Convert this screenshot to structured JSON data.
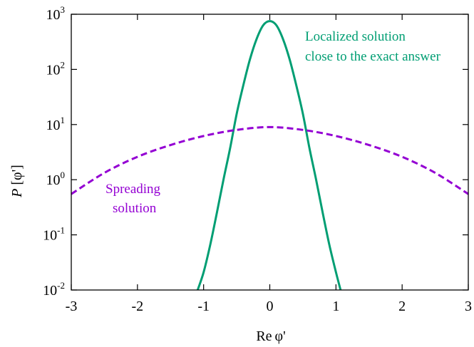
{
  "chart_data": {
    "type": "line",
    "xlabel_parts": [
      "Re",
      "φ'"
    ],
    "ylabel_parts": [
      "P",
      "[φ']"
    ],
    "xlim": [
      -3,
      3
    ],
    "ylim": [
      0.01,
      1000
    ],
    "log_y": true,
    "grid": false,
    "x_ticks": [
      {
        "value": -3,
        "label": "-3"
      },
      {
        "value": -2,
        "label": "-2"
      },
      {
        "value": -1,
        "label": "-1"
      },
      {
        "value": 0,
        "label": "0"
      },
      {
        "value": 1,
        "label": "1"
      },
      {
        "value": 2,
        "label": "2"
      },
      {
        "value": 3,
        "label": "3"
      }
    ],
    "y_ticks": [
      {
        "value": 0.01,
        "base": "10",
        "exp": "-2"
      },
      {
        "value": 0.1,
        "base": "10",
        "exp": "-1"
      },
      {
        "value": 1,
        "base": "10",
        "exp": "0"
      },
      {
        "value": 10,
        "base": "10",
        "exp": "1"
      },
      {
        "value": 100,
        "base": "10",
        "exp": "2"
      },
      {
        "value": 1000,
        "base": "10",
        "exp": "3"
      }
    ],
    "series": [
      {
        "label_lines": [
          "Localized solution",
          "close to the exact answer"
        ],
        "color": "#009e73",
        "style": "solid",
        "x": [
          -1.09,
          -1.0,
          -0.9,
          -0.8,
          -0.7,
          -0.6,
          -0.5,
          -0.4,
          -0.3,
          -0.2,
          -0.1,
          0.0,
          0.1,
          0.2,
          0.3,
          0.4,
          0.5,
          0.6,
          0.7,
          0.8,
          0.9,
          1.0,
          1.07
        ],
        "y": [
          0.01,
          0.021,
          0.066,
          0.25,
          1.0,
          3.7,
          15.7,
          51.7,
          152,
          354,
          630,
          750,
          630,
          354,
          152,
          51.7,
          15.7,
          3.7,
          1.0,
          0.25,
          0.066,
          0.021,
          0.01
        ]
      },
      {
        "label_lines": [
          "Spreading",
          "solution"
        ],
        "color": "#9400d3",
        "style": "dashed",
        "x": [
          -3.0,
          -2.5,
          -2.0,
          -1.5,
          -1.0,
          -0.5,
          0.0,
          0.5,
          1.0,
          1.5,
          2.0,
          2.5,
          3.0
        ],
        "y": [
          0.55,
          1.33,
          2.6,
          4.25,
          6.2,
          8.0,
          9.0,
          8.0,
          6.2,
          4.25,
          2.6,
          1.33,
          0.55
        ]
      }
    ]
  }
}
